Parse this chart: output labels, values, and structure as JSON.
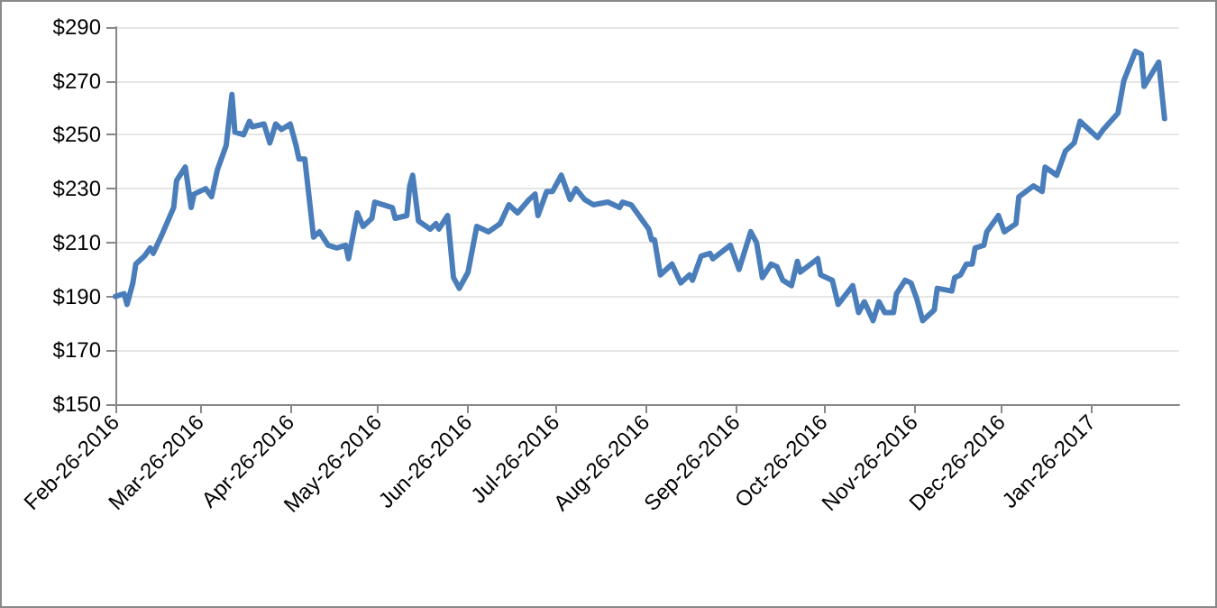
{
  "chart_data": {
    "type": "line",
    "x": [
      "2016-02-26",
      "2016-02-29",
      "2016-03-01",
      "2016-03-03",
      "2016-03-04",
      "2016-03-07",
      "2016-03-09",
      "2016-03-10",
      "2016-03-13",
      "2016-03-17",
      "2016-03-18",
      "2016-03-21",
      "2016-03-23",
      "2016-03-24",
      "2016-03-28",
      "2016-03-30",
      "2016-04-01",
      "2016-04-04",
      "2016-04-06",
      "2016-04-07",
      "2016-04-10",
      "2016-04-12",
      "2016-04-13",
      "2016-04-17",
      "2016-04-19",
      "2016-04-21",
      "2016-04-23",
      "2016-04-26",
      "2016-04-28",
      "2016-04-29",
      "2016-05-01",
      "2016-05-04",
      "2016-05-06",
      "2016-05-09",
      "2016-05-12",
      "2016-05-15",
      "2016-05-16",
      "2016-05-19",
      "2016-05-21",
      "2016-05-24",
      "2016-05-25",
      "2016-05-31",
      "2016-06-01",
      "2016-06-05",
      "2016-06-06",
      "2016-06-07",
      "2016-06-09",
      "2016-06-13",
      "2016-06-15",
      "2016-06-16",
      "2016-06-19",
      "2016-06-21",
      "2016-06-23",
      "2016-06-26",
      "2016-06-29",
      "2016-07-03",
      "2016-07-07",
      "2016-07-10",
      "2016-07-13",
      "2016-07-17",
      "2016-07-19",
      "2016-07-20",
      "2016-07-23",
      "2016-07-25",
      "2016-07-28",
      "2016-07-31",
      "2016-08-02",
      "2016-08-05",
      "2016-08-08",
      "2016-08-13",
      "2016-08-17",
      "2016-08-18",
      "2016-08-21",
      "2016-08-25",
      "2016-08-27",
      "2016-08-28",
      "2016-08-29",
      "2016-08-31",
      "2016-09-04",
      "2016-09-07",
      "2016-09-10",
      "2016-09-11",
      "2016-09-14",
      "2016-09-17",
      "2016-09-18",
      "2016-09-24",
      "2016-09-27",
      "2016-10-01",
      "2016-10-03",
      "2016-10-05",
      "2016-10-08",
      "2016-10-10",
      "2016-10-12",
      "2016-10-15",
      "2016-10-17",
      "2016-10-18",
      "2016-10-24",
      "2016-10-25",
      "2016-10-29",
      "2016-10-31",
      "2016-11-05",
      "2016-11-07",
      "2016-11-09",
      "2016-11-12",
      "2016-11-14",
      "2016-11-16",
      "2016-11-19",
      "2016-11-20",
      "2016-11-23",
      "2016-11-25",
      "2016-11-27",
      "2016-11-29",
      "2016-12-03",
      "2016-12-04",
      "2016-12-09",
      "2016-12-10",
      "2016-12-12",
      "2016-12-14",
      "2016-12-16",
      "2016-12-17",
      "2016-12-20",
      "2016-12-21",
      "2016-12-25",
      "2016-12-27",
      "2016-12-31",
      "2017-01-01",
      "2017-01-06",
      "2017-01-09",
      "2017-01-10",
      "2017-01-14",
      "2017-01-17",
      "2017-01-20",
      "2017-01-22",
      "2017-01-25",
      "2017-01-28",
      "2017-01-30",
      "2017-02-04",
      "2017-02-06",
      "2017-02-10",
      "2017-02-12",
      "2017-02-13",
      "2017-02-18",
      "2017-02-20"
    ],
    "series": [
      {
        "color": "#4a7ebb",
        "values": [
          190,
          191,
          187,
          195,
          202,
          205,
          208,
          206,
          213,
          223,
          233,
          238,
          223,
          228,
          230,
          227,
          237,
          246,
          265,
          251,
          250,
          255,
          253,
          254,
          247,
          254,
          252,
          254,
          246,
          241,
          241,
          212,
          214,
          209,
          208,
          209,
          204,
          221,
          216,
          219,
          225,
          223,
          219,
          220,
          231,
          235,
          218,
          215,
          217,
          215,
          220,
          197,
          193,
          199,
          216,
          214,
          217,
          224,
          221,
          226,
          228,
          220,
          229,
          229,
          235,
          226,
          230,
          226,
          224,
          225,
          223,
          225,
          224,
          218,
          215,
          211,
          211,
          198,
          202,
          195,
          198,
          196,
          205,
          206,
          204,
          209,
          200,
          214,
          210,
          197,
          202,
          201,
          196,
          194,
          203,
          199,
          204,
          198,
          196,
          187,
          194,
          184,
          188,
          181,
          188,
          184,
          184,
          191,
          196,
          195,
          189,
          181,
          185,
          193,
          192,
          197,
          198,
          202,
          202,
          208,
          209,
          214,
          220,
          214,
          217,
          227,
          231,
          229,
          238,
          235,
          244,
          247,
          255,
          252,
          249,
          252,
          258,
          270,
          281,
          280,
          268,
          277,
          256
        ]
      }
    ],
    "xlim": [
      "2016-02-26",
      "2017-02-25"
    ],
    "xticks": [
      {
        "value": "2016-02-26",
        "label": "Feb-26-2016"
      },
      {
        "value": "2016-03-26",
        "label": "Mar-26-2016"
      },
      {
        "value": "2016-04-26",
        "label": "Apr-26-2016"
      },
      {
        "value": "2016-05-26",
        "label": "May-26-2016"
      },
      {
        "value": "2016-06-26",
        "label": "Jun-26-2016"
      },
      {
        "value": "2016-07-26",
        "label": "Jul-26-2016"
      },
      {
        "value": "2016-08-26",
        "label": "Aug-26-2016"
      },
      {
        "value": "2016-09-26",
        "label": "Sep-26-2016"
      },
      {
        "value": "2016-10-26",
        "label": "Oct-26-2016"
      },
      {
        "value": "2016-11-26",
        "label": "Nov-26-2016"
      },
      {
        "value": "2016-12-26",
        "label": "Dec-26-2016"
      },
      {
        "value": "2017-01-26",
        "label": "Jan-26-2017"
      }
    ],
    "ylim": [
      150,
      290
    ],
    "yticks": [
      {
        "value": 150,
        "label": "$150"
      },
      {
        "value": 170,
        "label": "$170"
      },
      {
        "value": 190,
        "label": "$190"
      },
      {
        "value": 210,
        "label": "$210"
      },
      {
        "value": 230,
        "label": "$230"
      },
      {
        "value": 250,
        "label": "$250"
      },
      {
        "value": 270,
        "label": "$270"
      },
      {
        "value": 290,
        "label": "$290"
      }
    ],
    "grid": "y",
    "marker": "none",
    "line_style": "solid"
  }
}
